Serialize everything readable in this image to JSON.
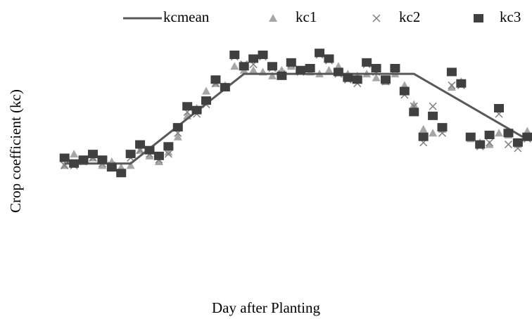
{
  "chart_data": {
    "type": "scatter",
    "x_label": "Day after Planting",
    "y_label": "Crop coefficient (kc)",
    "xlim": [
      0,
      100
    ],
    "ylim": [
      0,
      1.4
    ],
    "grid": false,
    "legend": "top",
    "x": [
      1,
      3,
      5,
      7,
      9,
      11,
      13,
      15,
      17,
      19,
      21,
      23,
      25,
      27,
      29,
      31,
      33,
      35,
      37,
      39,
      41,
      43,
      45,
      47,
      49,
      51,
      53,
      55,
      57,
      59,
      61,
      63,
      65,
      67,
      69,
      71,
      73,
      75,
      77,
      79,
      81,
      83,
      85,
      87,
      89,
      91,
      93,
      95,
      97,
      99
    ],
    "series": [
      {
        "name": "kcmean",
        "mark": "line",
        "color": "#595959",
        "x": [
          1,
          15,
          39,
          75,
          98
        ],
        "values": [
          0.69,
          0.69,
          1.16,
          1.16,
          0.83
        ]
      },
      {
        "name": "kc1",
        "mark": "triangle",
        "color": "#a6a6a6",
        "values": [
          0.68,
          0.74,
          0.7,
          0.72,
          0.68,
          0.7,
          0.67,
          0.68,
          0.76,
          0.73,
          0.7,
          0.75,
          0.83,
          0.94,
          0.98,
          1.07,
          1.11,
          1.1,
          1.2,
          1.18,
          1.18,
          1.17,
          1.15,
          1.18,
          1.2,
          1.18,
          1.17,
          1.16,
          1.18,
          1.2,
          1.16,
          1.15,
          1.16,
          1.14,
          1.12,
          1.16,
          1.1,
          1.0,
          0.87,
          0.85,
          0.87,
          1.09,
          1.12,
          0.82,
          0.8,
          0.79,
          0.85,
          0.84,
          0.79,
          0.86
        ]
      },
      {
        "name": "kc2",
        "mark": "cross",
        "color": "#7f7f7f",
        "values": [
          0.68,
          0.68,
          0.7,
          0.72,
          0.69,
          0.68,
          0.64,
          0.72,
          0.76,
          0.74,
          0.71,
          0.74,
          0.85,
          0.96,
          0.95,
          1.0,
          1.11,
          1.09,
          1.25,
          1.21,
          1.21,
          1.25,
          1.19,
          1.16,
          1.21,
          1.17,
          1.19,
          1.26,
          1.23,
          1.16,
          1.13,
          1.11,
          1.21,
          1.17,
          1.12,
          1.18,
          1.05,
          0.99,
          0.8,
          0.99,
          0.85,
          1.1,
          1.1,
          0.83,
          0.78,
          0.8,
          0.95,
          0.79,
          0.77,
          0.82
        ]
      },
      {
        "name": "kc3",
        "mark": "square",
        "color": "#404040",
        "values": [
          0.72,
          0.69,
          0.71,
          0.74,
          0.71,
          0.67,
          0.64,
          0.74,
          0.79,
          0.76,
          0.73,
          0.78,
          0.88,
          0.99,
          0.97,
          1.02,
          1.13,
          1.09,
          1.26,
          1.2,
          1.24,
          1.26,
          1.2,
          1.15,
          1.22,
          1.18,
          1.19,
          1.27,
          1.24,
          1.17,
          1.14,
          1.13,
          1.22,
          1.19,
          1.13,
          1.19,
          1.07,
          0.96,
          0.83,
          0.94,
          0.88,
          1.17,
          1.11,
          0.83,
          0.79,
          0.84,
          0.98,
          0.85,
          0.8,
          0.83
        ]
      }
    ]
  }
}
